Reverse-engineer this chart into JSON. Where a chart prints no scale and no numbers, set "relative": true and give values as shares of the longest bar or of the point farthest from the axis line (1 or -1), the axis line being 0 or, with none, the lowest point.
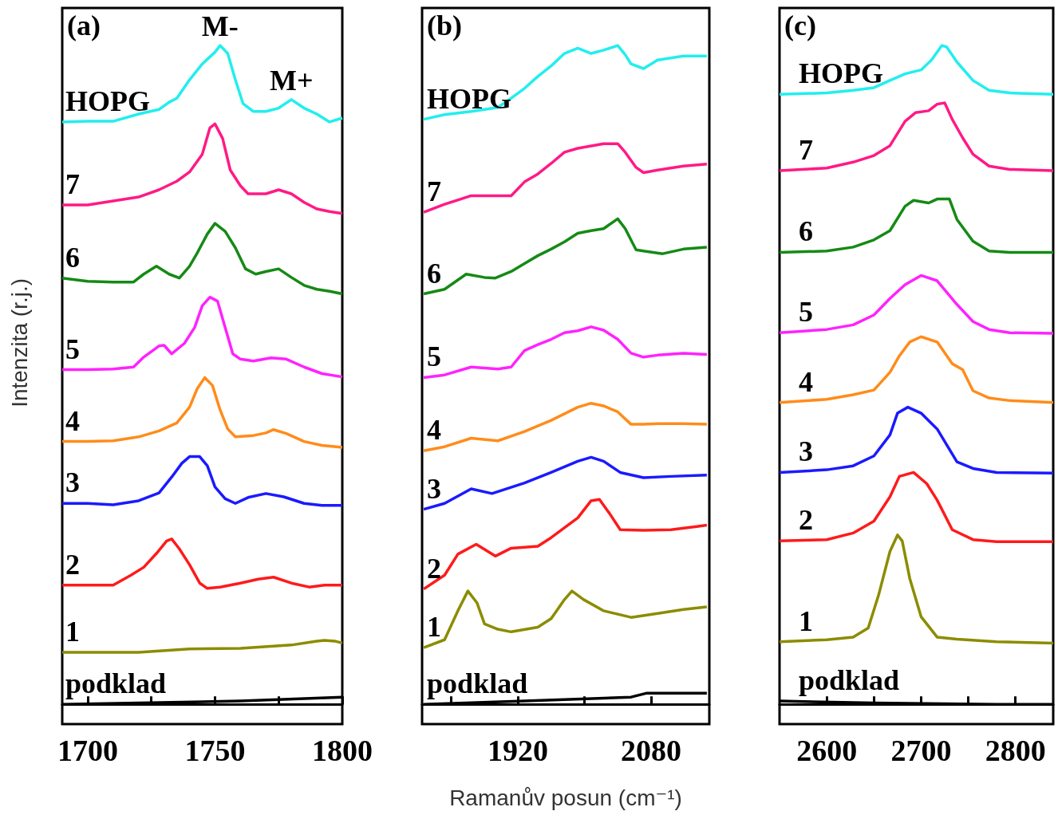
{
  "chart_data": [
    {
      "type": "line",
      "relative": true,
      "ylabel": "Intenzita (r.j.)",
      "xlim": [
        1690,
        1800
      ],
      "xticks": [
        1700,
        {
          "value": 1725,
          "label": null
        },
        1750,
        {
          "value": 1775,
          "label": null
        },
        1800
      ],
      "annotations": [
        "(a)",
        {
          "text": "M-",
          "x": 1752,
          "y": 1.0
        },
        {
          "text": "M+",
          "x": 1780,
          "y": 0.918
        }
      ],
      "series": [
        {
          "name": "HOPG",
          "color": "#22eeee",
          "x": [
            1690,
            1700,
            1710,
            1720,
            1728,
            1732,
            1735,
            1740,
            1745,
            1750,
            1752,
            1755,
            1758,
            1761,
            1765,
            1770,
            1775,
            1780,
            1785,
            1790,
            1795,
            1800
          ],
          "values": [
            0.884,
            0.885,
            0.885,
            0.896,
            0.903,
            0.914,
            0.92,
            0.948,
            0.972,
            0.99,
            1.0,
            0.988,
            0.948,
            0.912,
            0.9,
            0.9,
            0.905,
            0.918,
            0.905,
            0.896,
            0.884,
            0.89
          ]
        },
        {
          "name": "7",
          "color": "#ff1a85",
          "x": [
            1690,
            1700,
            1710,
            1720,
            1728,
            1735,
            1740,
            1745,
            1748,
            1750,
            1753,
            1756,
            1760,
            1763,
            1770,
            1775,
            1780,
            1785,
            1790,
            1795,
            1800
          ],
          "values": [
            0.758,
            0.758,
            0.764,
            0.77,
            0.781,
            0.794,
            0.808,
            0.835,
            0.875,
            0.881,
            0.859,
            0.811,
            0.787,
            0.775,
            0.775,
            0.781,
            0.775,
            0.762,
            0.752,
            0.748,
            0.745
          ]
        },
        {
          "name": "6",
          "color": "#158a15",
          "x": [
            1690,
            1700,
            1710,
            1718,
            1722,
            1727,
            1732,
            1736,
            1740,
            1743,
            1747,
            1750,
            1754,
            1758,
            1762,
            1766,
            1770,
            1775,
            1780,
            1785,
            1790,
            1795,
            1800
          ],
          "values": [
            0.647,
            0.642,
            0.641,
            0.641,
            0.653,
            0.665,
            0.653,
            0.647,
            0.665,
            0.685,
            0.714,
            0.73,
            0.718,
            0.693,
            0.661,
            0.653,
            0.657,
            0.661,
            0.648,
            0.636,
            0.63,
            0.627,
            0.623
          ]
        },
        {
          "name": "5",
          "color": "#ff22ff",
          "x": [
            1690,
            1700,
            1710,
            1718,
            1722,
            1728,
            1730,
            1733,
            1738,
            1742,
            1745,
            1748,
            1751,
            1754,
            1757,
            1760,
            1765,
            1772,
            1778,
            1785,
            1792,
            1800
          ],
          "values": [
            0.508,
            0.508,
            0.509,
            0.512,
            0.527,
            0.544,
            0.545,
            0.532,
            0.548,
            0.572,
            0.605,
            0.618,
            0.612,
            0.572,
            0.532,
            0.524,
            0.521,
            0.526,
            0.524,
            0.512,
            0.502,
            0.497
          ]
        },
        {
          "name": "4",
          "color": "#ff8c1a",
          "x": [
            1690,
            1700,
            1710,
            1720,
            1728,
            1735,
            1740,
            1743,
            1746,
            1749,
            1752,
            1755,
            1758,
            1765,
            1770,
            1773,
            1778,
            1785,
            1792,
            1800
          ],
          "values": [
            0.399,
            0.399,
            0.4,
            0.406,
            0.415,
            0.427,
            0.451,
            0.479,
            0.496,
            0.484,
            0.447,
            0.418,
            0.406,
            0.408,
            0.412,
            0.417,
            0.411,
            0.399,
            0.393,
            0.39
          ]
        },
        {
          "name": "3",
          "color": "#1a1aff",
          "x": [
            1690,
            1700,
            1710,
            1720,
            1728,
            1733,
            1737,
            1740,
            1744,
            1747,
            1750,
            1754,
            1758,
            1763,
            1770,
            1777,
            1785,
            1792,
            1800
          ],
          "values": [
            0.305,
            0.305,
            0.303,
            0.309,
            0.321,
            0.345,
            0.366,
            0.376,
            0.376,
            0.362,
            0.33,
            0.312,
            0.305,
            0.314,
            0.32,
            0.315,
            0.305,
            0.302,
            0.302
          ]
        },
        {
          "name": "2",
          "color": "#ff1a1a",
          "x": [
            1690,
            1700,
            1710,
            1717,
            1722,
            1727,
            1731,
            1733,
            1736,
            1740,
            1744,
            1747,
            1752,
            1760,
            1767,
            1773,
            1780,
            1787,
            1793,
            1800
          ],
          "values": [
            0.181,
            0.181,
            0.181,
            0.196,
            0.208,
            0.229,
            0.248,
            0.251,
            0.236,
            0.212,
            0.184,
            0.176,
            0.178,
            0.184,
            0.19,
            0.193,
            0.184,
            0.178,
            0.181,
            0.181
          ]
        },
        {
          "name": "1",
          "color": "#8c8c00",
          "x": [
            1690,
            1700,
            1720,
            1740,
            1760,
            1780,
            1790,
            1793,
            1797,
            1800
          ],
          "values": [
            0.079,
            0.079,
            0.079,
            0.084,
            0.085,
            0.09,
            0.096,
            0.097,
            0.096,
            0.093
          ]
        },
        {
          "name": "podklad",
          "color": "#000000",
          "x": [
            1690,
            1720,
            1760,
            1800
          ],
          "values": [
            0,
            0.002,
            0.005,
            0.011
          ]
        }
      ]
    },
    {
      "type": "line",
      "relative": true,
      "xlabel": "Ramanův posun (cm⁻¹)",
      "xlim": [
        1805,
        2150
      ],
      "xticks": [
        {
          "value": 1840,
          "label": null
        },
        1920,
        {
          "value": 2000,
          "label": null
        },
        2080
      ],
      "annotations": [
        "(b)"
      ],
      "series": [
        {
          "name": "HOPG",
          "color": "#22eeee",
          "x": [
            1807,
            1832,
            1864,
            1896,
            1912,
            1928,
            1944,
            1960,
            1976,
            1992,
            2008,
            2023,
            2040,
            2049,
            2056,
            2071,
            2088,
            2119,
            2147
          ],
          "values": [
            0.888,
            0.895,
            0.9,
            0.906,
            0.92,
            0.935,
            0.953,
            0.969,
            0.988,
            0.996,
            0.988,
            0.993,
            1.0,
            0.986,
            0.972,
            0.965,
            0.978,
            0.984,
            0.984
          ]
        },
        {
          "name": "7",
          "color": "#ff1a85",
          "x": [
            1807,
            1832,
            1864,
            1896,
            1912,
            1928,
            1944,
            1960,
            1976,
            1992,
            2023,
            2040,
            2049,
            2062,
            2071,
            2088,
            2119,
            2147
          ],
          "values": [
            0.747,
            0.759,
            0.772,
            0.772,
            0.772,
            0.793,
            0.805,
            0.821,
            0.838,
            0.844,
            0.851,
            0.851,
            0.838,
            0.815,
            0.807,
            0.811,
            0.817,
            0.82
          ]
        },
        {
          "name": "6",
          "color": "#158a15",
          "x": [
            1807,
            1832,
            1858,
            1880,
            1893,
            1912,
            1928,
            1944,
            1960,
            1976,
            1992,
            2008,
            2023,
            2040,
            2049,
            2062,
            2071,
            2094,
            2119,
            2147
          ],
          "values": [
            0.623,
            0.63,
            0.653,
            0.648,
            0.647,
            0.657,
            0.669,
            0.681,
            0.691,
            0.702,
            0.715,
            0.719,
            0.722,
            0.737,
            0.722,
            0.69,
            0.688,
            0.684,
            0.691,
            0.694
          ]
        },
        {
          "name": "5",
          "color": "#ff22ff",
          "x": [
            1807,
            1832,
            1864,
            1896,
            1912,
            1928,
            1944,
            1960,
            1976,
            1992,
            2008,
            2023,
            2040,
            2056,
            2071,
            2088,
            2119,
            2147
          ],
          "values": [
            0.496,
            0.5,
            0.512,
            0.509,
            0.512,
            0.537,
            0.546,
            0.554,
            0.564,
            0.567,
            0.573,
            0.568,
            0.554,
            0.533,
            0.527,
            0.53,
            0.533,
            0.531
          ]
        },
        {
          "name": "4",
          "color": "#ff8c1a",
          "x": [
            1807,
            1832,
            1864,
            1896,
            1928,
            1960,
            1992,
            2008,
            2023,
            2040,
            2056,
            2071,
            2088,
            2119,
            2147
          ],
          "values": [
            0.385,
            0.391,
            0.404,
            0.4,
            0.414,
            0.431,
            0.451,
            0.457,
            0.453,
            0.444,
            0.425,
            0.425,
            0.426,
            0.426,
            0.425
          ]
        },
        {
          "name": "3",
          "color": "#1a1aff",
          "x": [
            1807,
            1832,
            1864,
            1889,
            1928,
            1960,
            1992,
            2008,
            2023,
            2043,
            2071,
            2104,
            2147
          ],
          "values": [
            0.296,
            0.305,
            0.327,
            0.32,
            0.336,
            0.352,
            0.369,
            0.375,
            0.369,
            0.352,
            0.344,
            0.346,
            0.348
          ]
        },
        {
          "name": "2",
          "color": "#ff1a1a",
          "x": [
            1807,
            1832,
            1848,
            1870,
            1893,
            1912,
            1944,
            1960,
            1992,
            2008,
            2018,
            2030,
            2043,
            2071,
            2104,
            2135,
            2147
          ],
          "values": [
            0.175,
            0.196,
            0.228,
            0.243,
            0.225,
            0.237,
            0.24,
            0.253,
            0.283,
            0.309,
            0.311,
            0.29,
            0.265,
            0.264,
            0.265,
            0.27,
            0.272
          ]
        },
        {
          "name": "1",
          "color": "#8c8c00",
          "x": [
            1807,
            1832,
            1848,
            1860,
            1871,
            1880,
            1896,
            1912,
            1944,
            1960,
            1976,
            1985,
            1999,
            2023,
            2056,
            2088,
            2119,
            2147
          ],
          "values": [
            0.086,
            0.098,
            0.142,
            0.172,
            0.154,
            0.122,
            0.114,
            0.11,
            0.117,
            0.13,
            0.159,
            0.172,
            0.159,
            0.142,
            0.132,
            0.138,
            0.144,
            0.148
          ]
        },
        {
          "name": "podklad",
          "color": "#000000",
          "x": [
            1807,
            1928,
            2056,
            2075,
            2147
          ],
          "values": [
            0,
            0.005,
            0.011,
            0.017,
            0.017
          ]
        }
      ]
    },
    {
      "type": "line",
      "relative": true,
      "xlim": [
        2550,
        2840
      ],
      "xticks": [
        2600,
        {
          "value": 2650,
          "label": null
        },
        2700,
        {
          "value": 2750,
          "label": null
        },
        2800
      ],
      "annotations": [
        "(c)"
      ],
      "series": [
        {
          "name": "HOPG",
          "color": "#22eeee",
          "x": [
            2550,
            2600,
            2628,
            2650,
            2667,
            2683,
            2700,
            2711,
            2722,
            2727,
            2738,
            2755,
            2772,
            2794,
            2840
          ],
          "values": [
            0.926,
            0.928,
            0.932,
            0.936,
            0.947,
            0.957,
            0.963,
            0.978,
            1.0,
            0.998,
            0.975,
            0.947,
            0.932,
            0.928,
            0.926
          ]
        },
        {
          "name": "7",
          "color": "#ff1a85",
          "x": [
            2550,
            2600,
            2628,
            2650,
            2667,
            2683,
            2694,
            2708,
            2717,
            2725,
            2733,
            2744,
            2755,
            2772,
            2794,
            2840
          ],
          "values": [
            0.81,
            0.814,
            0.823,
            0.833,
            0.848,
            0.885,
            0.898,
            0.901,
            0.911,
            0.913,
            0.888,
            0.86,
            0.835,
            0.817,
            0.812,
            0.81
          ]
        },
        {
          "name": "6",
          "color": "#158a15",
          "x": [
            2550,
            2600,
            2628,
            2650,
            2667,
            2683,
            2692,
            2708,
            2717,
            2730,
            2738,
            2755,
            2772,
            2794,
            2840
          ],
          "values": [
            0.686,
            0.688,
            0.694,
            0.705,
            0.719,
            0.756,
            0.765,
            0.761,
            0.767,
            0.767,
            0.736,
            0.703,
            0.688,
            0.686,
            0.686
          ]
        },
        {
          "name": "5",
          "color": "#ff22ff",
          "x": [
            2550,
            2600,
            2628,
            2650,
            2667,
            2683,
            2700,
            2717,
            2738,
            2755,
            2772,
            2794,
            2840
          ],
          "values": [
            0.564,
            0.569,
            0.576,
            0.591,
            0.616,
            0.637,
            0.651,
            0.643,
            0.607,
            0.581,
            0.569,
            0.564,
            0.563
          ]
        },
        {
          "name": "4",
          "color": "#ff8c1a",
          "x": [
            2550,
            2600,
            2628,
            2650,
            2667,
            2677,
            2688,
            2700,
            2717,
            2733,
            2744,
            2755,
            2772,
            2794,
            2840
          ],
          "values": [
            0.458,
            0.463,
            0.47,
            0.477,
            0.504,
            0.529,
            0.55,
            0.558,
            0.55,
            0.517,
            0.508,
            0.476,
            0.465,
            0.461,
            0.458
          ]
        },
        {
          "name": "3",
          "color": "#1a1aff",
          "x": [
            2550,
            2600,
            2628,
            2650,
            2667,
            2675,
            2686,
            2700,
            2717,
            2738,
            2755,
            2780,
            2840
          ],
          "values": [
            0.352,
            0.356,
            0.362,
            0.377,
            0.409,
            0.442,
            0.451,
            0.442,
            0.418,
            0.368,
            0.358,
            0.352,
            0.351
          ]
        },
        {
          "name": "2",
          "color": "#ff1a1a",
          "x": [
            2550,
            2600,
            2628,
            2650,
            2667,
            2677,
            2692,
            2706,
            2717,
            2733,
            2755,
            2780,
            2840
          ],
          "values": [
            0.248,
            0.25,
            0.26,
            0.278,
            0.315,
            0.346,
            0.352,
            0.335,
            0.31,
            0.265,
            0.25,
            0.247,
            0.247
          ]
        },
        {
          "name": "1",
          "color": "#8c8c00",
          "x": [
            2550,
            2600,
            2628,
            2644,
            2655,
            2667,
            2675,
            2680,
            2688,
            2700,
            2717,
            2738,
            2780,
            2840
          ],
          "values": [
            0.095,
            0.098,
            0.102,
            0.116,
            0.166,
            0.232,
            0.257,
            0.248,
            0.191,
            0.133,
            0.102,
            0.099,
            0.095,
            0.093
          ]
        },
        {
          "name": "podklad",
          "color": "#000000",
          "x": [
            2550,
            2650,
            2780,
            2840
          ],
          "values": [
            0.005,
            0.002,
            0,
            0
          ]
        }
      ]
    }
  ]
}
